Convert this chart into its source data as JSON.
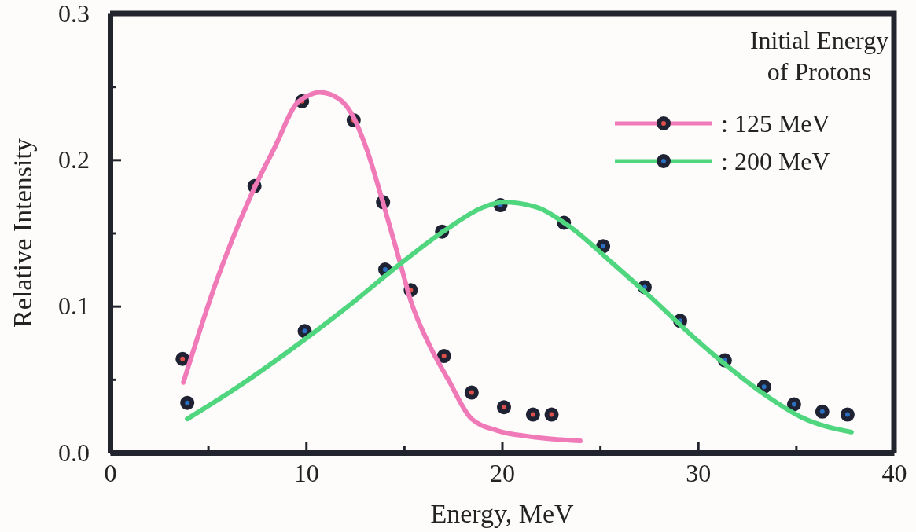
{
  "chart_data": {
    "type": "scatter",
    "xlabel": "Energy, MeV",
    "ylabel": "Relative Intensity",
    "legend_title": "Initial Energy of Protons",
    "legend": "top right",
    "marker": "circle",
    "line_style": "solid",
    "grid": false,
    "xlim": [
      0,
      40
    ],
    "ylim": [
      0,
      0.3
    ],
    "xticks": [
      0,
      {
        "value": 5,
        "label": null
      },
      10,
      {
        "value": 15,
        "label": null
      },
      20,
      {
        "value": 25,
        "label": null
      },
      30,
      {
        "value": 35,
        "label": null
      },
      40
    ],
    "yticks": [
      {
        "value": 0,
        "label": "0.0"
      },
      {
        "value": 0.05,
        "label": null
      },
      0.1,
      {
        "value": 0.15,
        "label": null
      },
      0.2,
      {
        "value": 0.25,
        "label": null
      },
      0.3
    ],
    "series": [
      {
        "name": ": 125 MeV",
        "color": "#e0504a",
        "x": [
          3.7,
          7.37,
          9.8,
          12.43,
          13.93,
          15.34,
          17.04,
          18.45,
          20.1,
          21.58,
          22.53
        ],
        "values": [
          0.064,
          0.182,
          0.24,
          0.227,
          0.171,
          0.111,
          0.066,
          0.041,
          0.031,
          0.026,
          0.026
        ]
      },
      {
        "type": "line",
        "marker": "none",
        "color": "#f07ab8",
        "x": [
          3.74,
          5.48,
          7.34,
          8.42,
          9.49,
          10.14,
          10.69,
          11.63,
          12.3,
          13.1,
          13.9,
          14.71,
          15.36,
          16.31,
          17.25,
          18.45,
          19.78,
          21.39,
          23.99
        ],
        "values": [
          0.048,
          0.119,
          0.18,
          0.209,
          0.238,
          0.244,
          0.246,
          0.242,
          0.232,
          0.207,
          0.172,
          0.134,
          0.103,
          0.073,
          0.05,
          0.023,
          0.015,
          0.011,
          0.008
        ]
      },
      {
        "name": ": 200 MeV",
        "color": "#2a6fc0",
        "x": [
          3.94,
          9.93,
          14.04,
          16.94,
          19.92,
          23.16,
          25.16,
          27.28,
          29.09,
          31.37,
          33.37,
          34.9,
          36.34,
          37.63
        ],
        "values": [
          0.034,
          0.083,
          0.125,
          0.151,
          0.169,
          0.157,
          0.141,
          0.113,
          0.09,
          0.063,
          0.045,
          0.033,
          0.028,
          0.026
        ]
      },
      {
        "type": "line",
        "marker": "none",
        "color": "#4fd67e",
        "x": [
          3.94,
          6.42,
          9.9,
          12.43,
          14.44,
          17.11,
          19.12,
          20.06,
          21.66,
          23.39,
          25.67,
          27.68,
          29.68,
          31.69,
          33.69,
          35.3,
          37.83
        ],
        "values": [
          0.023,
          0.044,
          0.077,
          0.103,
          0.125,
          0.152,
          0.168,
          0.171,
          0.168,
          0.155,
          0.129,
          0.105,
          0.08,
          0.057,
          0.037,
          0.024,
          0.014
        ]
      }
    ]
  }
}
